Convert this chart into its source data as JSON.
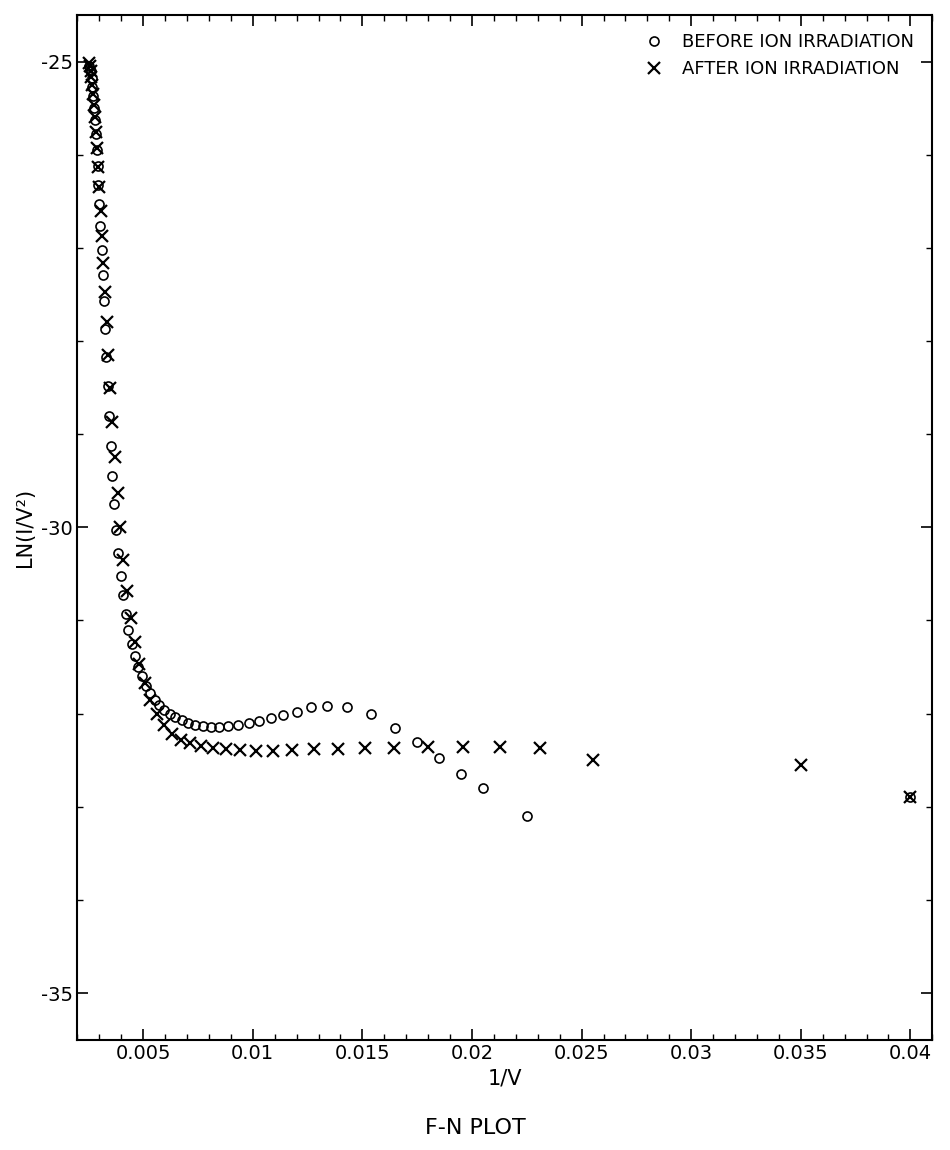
{
  "title": "F-N PLOT",
  "xlabel": "1/V",
  "ylabel": "LN(I/V²)",
  "xlim": [
    0.002,
    0.041
  ],
  "ylim": [
    -35.5,
    -24.5
  ],
  "yticks": [
    -25,
    -30,
    -35
  ],
  "xticks": [
    0.005,
    0.01,
    0.015,
    0.02,
    0.025,
    0.03,
    0.035,
    0.04
  ],
  "legend_before": "BEFORE ION IRRADIATION",
  "legend_after": "AFTER ION IRRADIATION",
  "before_x": [
    0.00255,
    0.0026,
    0.00265,
    0.00268,
    0.00272,
    0.00276,
    0.0028,
    0.00284,
    0.00288,
    0.00292,
    0.00296,
    0.003,
    0.00305,
    0.0031,
    0.00315,
    0.0032,
    0.00326,
    0.00332,
    0.00338,
    0.00345,
    0.00352,
    0.0036,
    0.00368,
    0.00377,
    0.00387,
    0.00397,
    0.00408,
    0.0042,
    0.00433,
    0.00447,
    0.00462,
    0.00478,
    0.00495,
    0.00513,
    0.00532,
    0.00552,
    0.00574,
    0.00597,
    0.00621,
    0.00647,
    0.00675,
    0.00705,
    0.00737,
    0.00771,
    0.00808,
    0.00847,
    0.00889,
    0.00934,
    0.00981,
    0.0103,
    0.01083,
    0.0114,
    0.012,
    0.01265,
    0.0134,
    0.0143,
    0.0154,
    0.0165,
    0.0175,
    0.0185,
    0.0195,
    0.0205,
    0.0225,
    0.04
  ],
  "before_y": [
    -25.05,
    -25.1,
    -25.18,
    -25.27,
    -25.37,
    -25.5,
    -25.63,
    -25.78,
    -25.95,
    -26.12,
    -26.32,
    -26.53,
    -26.77,
    -27.02,
    -27.29,
    -27.57,
    -27.87,
    -28.17,
    -28.48,
    -28.8,
    -29.13,
    -29.45,
    -29.75,
    -30.03,
    -30.28,
    -30.52,
    -30.73,
    -30.93,
    -31.1,
    -31.25,
    -31.38,
    -31.5,
    -31.6,
    -31.7,
    -31.78,
    -31.85,
    -31.91,
    -31.96,
    -32.0,
    -32.04,
    -32.07,
    -32.1,
    -32.12,
    -32.13,
    -32.14,
    -32.14,
    -32.13,
    -32.12,
    -32.1,
    -32.08,
    -32.05,
    -32.02,
    -31.98,
    -31.93,
    -31.92,
    -31.93,
    -32.0,
    -32.15,
    -32.3,
    -32.48,
    -32.65,
    -32.8,
    -33.1,
    -32.9
  ],
  "after_x": [
    0.00252,
    0.00256,
    0.0026,
    0.00264,
    0.00268,
    0.00272,
    0.00276,
    0.0028,
    0.00285,
    0.0029,
    0.00295,
    0.003,
    0.00306,
    0.00312,
    0.00318,
    0.00325,
    0.00333,
    0.00341,
    0.0035,
    0.0036,
    0.00371,
    0.00383,
    0.00396,
    0.0041,
    0.00426,
    0.00443,
    0.00462,
    0.00483,
    0.00507,
    0.00533,
    0.00562,
    0.00595,
    0.00631,
    0.00671,
    0.00715,
    0.00764,
    0.00818,
    0.00877,
    0.00942,
    0.01013,
    0.01092,
    0.0118,
    0.01278,
    0.01388,
    0.0151,
    0.01645,
    0.018,
    0.0196,
    0.0213,
    0.0231,
    0.0255,
    0.035,
    0.04
  ],
  "after_y": [
    -25.02,
    -25.05,
    -25.1,
    -25.17,
    -25.25,
    -25.35,
    -25.47,
    -25.6,
    -25.76,
    -25.93,
    -26.13,
    -26.35,
    -26.6,
    -26.87,
    -27.16,
    -27.47,
    -27.8,
    -28.15,
    -28.5,
    -28.87,
    -29.25,
    -29.63,
    -30.0,
    -30.35,
    -30.68,
    -30.97,
    -31.23,
    -31.47,
    -31.67,
    -31.85,
    -32.0,
    -32.12,
    -32.22,
    -32.28,
    -32.32,
    -32.35,
    -32.37,
    -32.38,
    -32.39,
    -32.4,
    -32.4,
    -32.39,
    -32.38,
    -32.38,
    -32.37,
    -32.37,
    -32.36,
    -32.36,
    -32.36,
    -32.37,
    -32.5,
    -32.55,
    -32.9
  ],
  "bg_color": "#ffffff",
  "marker_color": "#000000"
}
